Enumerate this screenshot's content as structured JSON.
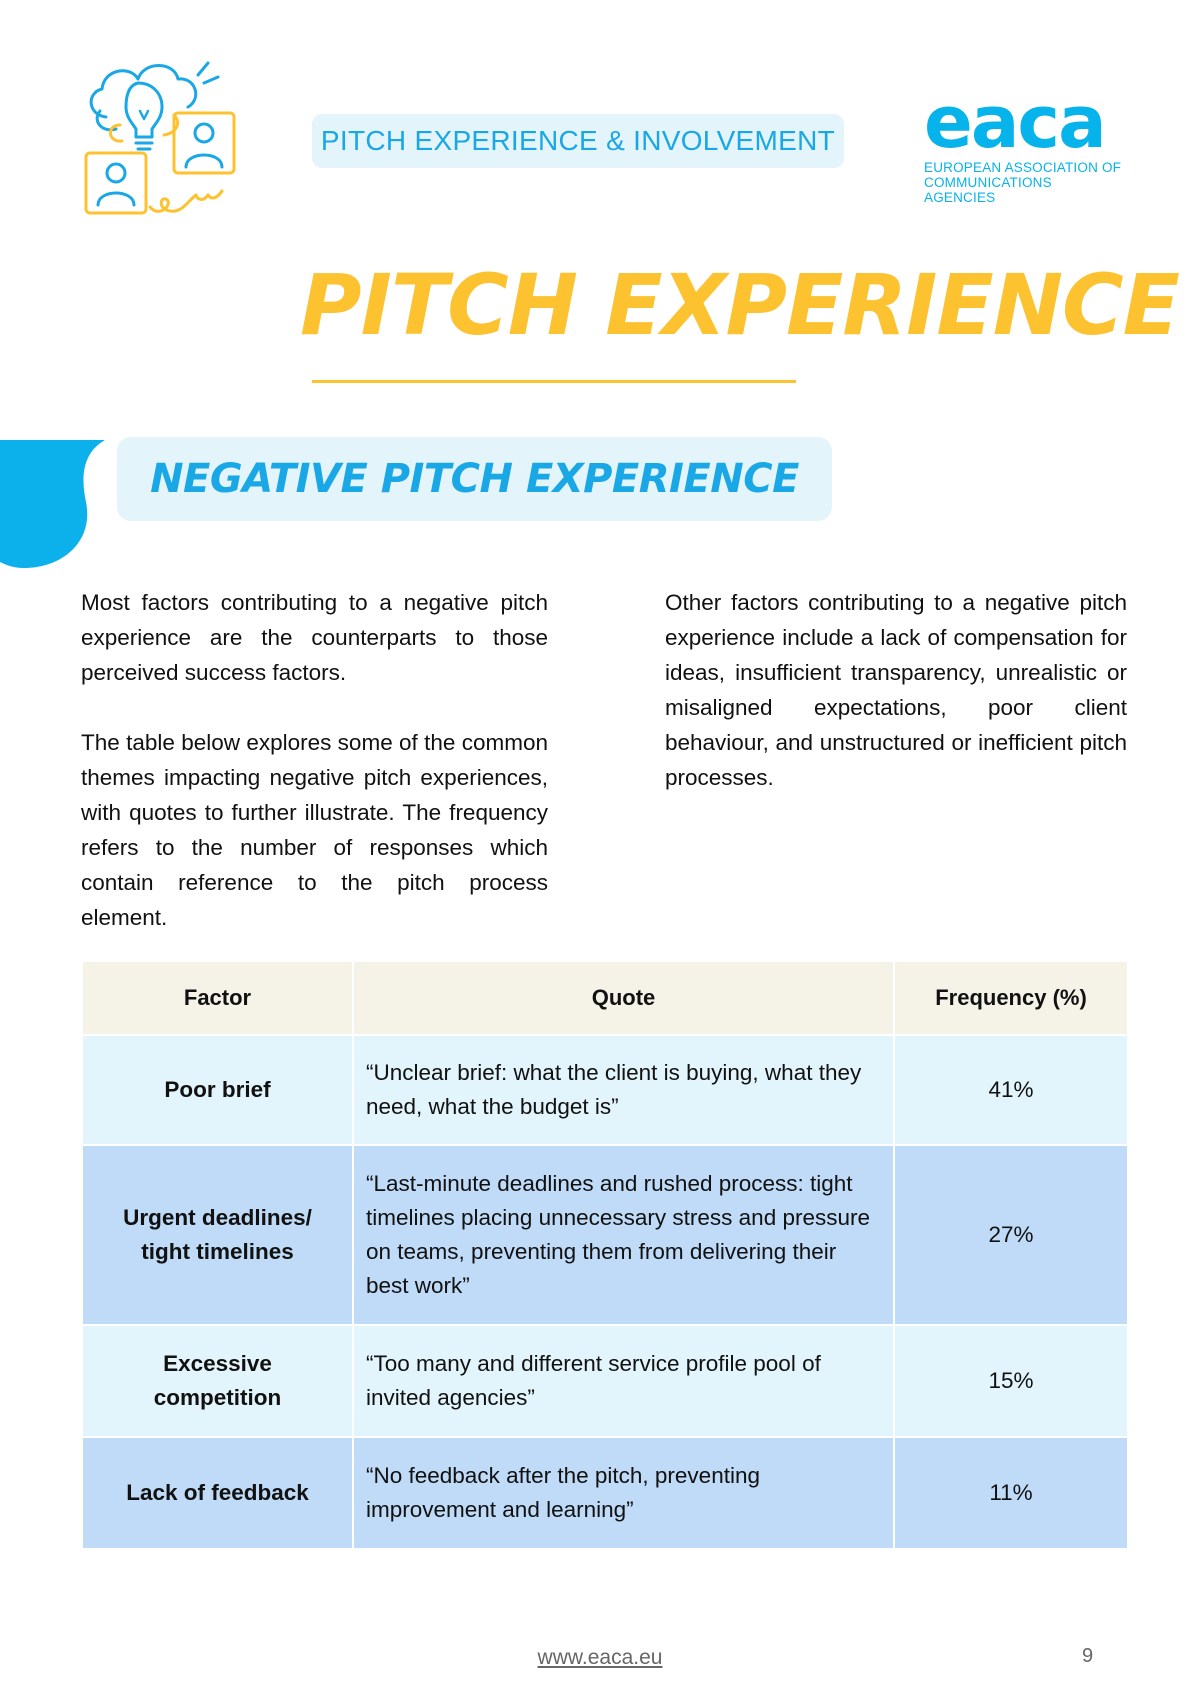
{
  "header": {
    "section_label": "PITCH EXPERIENCE & INVOLVEMENT",
    "logo": {
      "wordmark": "eaca",
      "subtitle_line1": "EUROPEAN ASSOCIATION OF",
      "subtitle_line2": "COMMUNICATIONS AGENCIES"
    },
    "illustration_icon": "lightbulb-people-icon"
  },
  "title": "PITCH EXPERIENCE",
  "subtitle": "NEGATIVE PITCH EXPERIENCE",
  "body": {
    "left_paragraphs": [
      "Most factors contributing to a negative pitch experience are the counterparts to those perceived success factors.",
      "The table below explores some of the common themes impacting negative pitch experiences, with quotes to further illustrate. The frequency refers to the number of responses which contain reference to the pitch process element."
    ],
    "right_paragraph": "Other factors contributing to a negative pitch experience include a lack of compensation for ideas, insufficient transparency, unrealistic or misaligned expectations, poor client behaviour, and unstructured or inefficient pitch processes."
  },
  "table": {
    "headers": [
      "Factor",
      "Quote",
      "Frequency (%)"
    ],
    "rows": [
      {
        "factor": "Poor brief",
        "quote": "“Unclear brief: what the client is buying, what they need, what the budget is”",
        "frequency": "41%"
      },
      {
        "factor": "Urgent deadlines/ tight timelines",
        "quote": "“Last-minute deadlines and rushed process: tight timelines placing unnecessary stress and pressure on teams, preventing them from delivering their best work”",
        "frequency": "27%"
      },
      {
        "factor": "Excessive competition",
        "quote": "“Too many and different service profile pool of invited agencies”",
        "frequency": "15%"
      },
      {
        "factor": "Lack of feedback",
        "quote": "“No feedback after the pitch, preventing improvement and learning”",
        "frequency": "11%"
      }
    ]
  },
  "footer": {
    "link": "www.eaca.eu",
    "page_number": "9"
  },
  "colors": {
    "accent_blue": "#1aa7e6",
    "logo_blue": "#06b3ea",
    "title_yellow": "#fdc22f",
    "pill_bg": "#e3f4fb",
    "row_light": "#e3f5fc",
    "row_blue": "#bfdbf7",
    "header_bg": "#f5f3e8"
  }
}
